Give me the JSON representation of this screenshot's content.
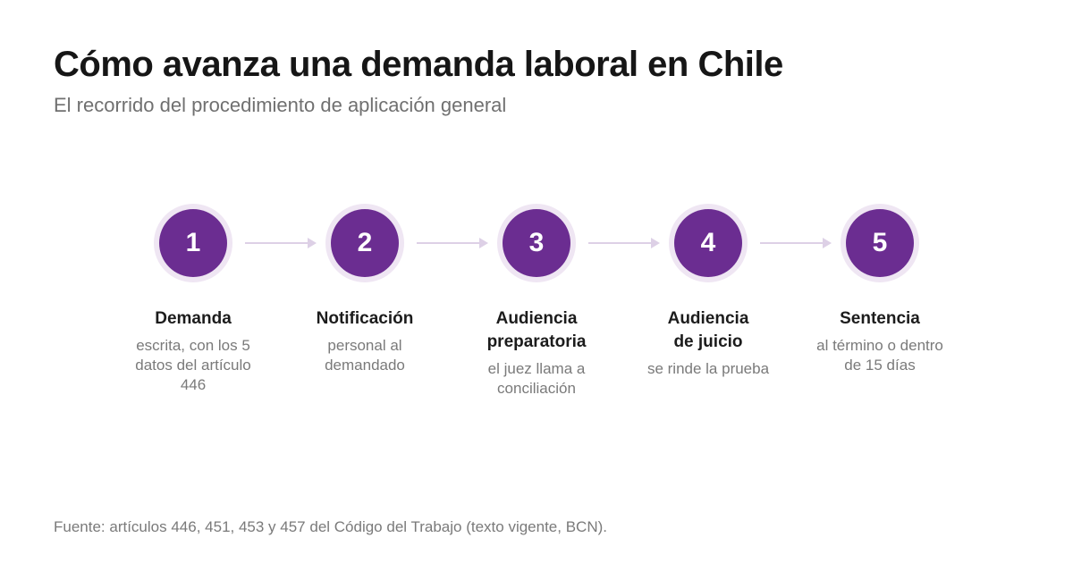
{
  "header": {
    "title": "Cómo avanza una demanda laboral en Chile",
    "subtitle": "El recorrido del procedimiento de aplicación general"
  },
  "colors": {
    "accent": "#6b2d91",
    "halo": "#efe6f3",
    "arrow": "#ddd0e6"
  },
  "steps": [
    {
      "number": "1",
      "label": "Demanda",
      "desc": "escrita, con los 5\ndatos del artículo\n446"
    },
    {
      "number": "2",
      "label": "Notificación",
      "desc": "personal al\ndemandado"
    },
    {
      "number": "3",
      "label": "Audiencia\npreparatoria",
      "desc": "el juez llama a\nconciliación"
    },
    {
      "number": "4",
      "label": "Audiencia\nde juicio",
      "desc": "se rinde la prueba"
    },
    {
      "number": "5",
      "label": "Sentencia",
      "desc": "al término o dentro\nde 15 días"
    }
  ],
  "source": "Fuente: artículos 446, 451, 453 y 457 del Código del Trabajo (texto vigente, BCN)."
}
